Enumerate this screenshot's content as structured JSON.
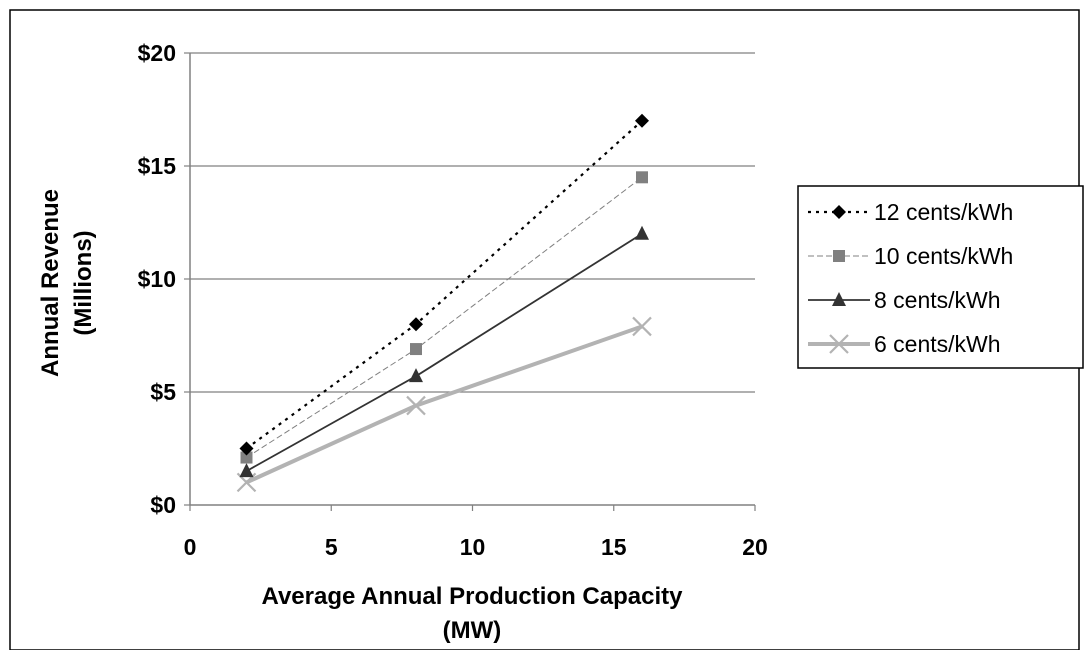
{
  "chart_data": {
    "type": "line",
    "title": "",
    "xlabel_lines": [
      "Average Annual Production Capacity",
      "(MW)"
    ],
    "ylabel_lines": [
      "Annual Revenue",
      "(Millions)"
    ],
    "xlim": [
      0,
      20
    ],
    "ylim": [
      0,
      20
    ],
    "x_ticks": [
      0,
      5,
      10,
      15,
      20
    ],
    "y_ticks": [
      0,
      5,
      10,
      15,
      20
    ],
    "x_tick_labels": [
      "0",
      "5",
      "10",
      "15",
      "20"
    ],
    "y_tick_labels": [
      "$0",
      "$5",
      "$10",
      "$15",
      "$20"
    ],
    "grid": "horizontal",
    "legend_position": "right",
    "x": [
      2,
      8,
      16
    ],
    "series": [
      {
        "name": "12 cents/kWh",
        "values": [
          2.5,
          8.0,
          17.0
        ],
        "color": "#000000",
        "style": "dotted",
        "marker": "diamond"
      },
      {
        "name": "10 cents/kWh",
        "values": [
          2.1,
          6.9,
          14.5
        ],
        "color": "#808080",
        "style": "thin-dashed",
        "marker": "square"
      },
      {
        "name": "8 cents/kWh",
        "values": [
          1.5,
          5.7,
          12.0
        ],
        "color": "#333333",
        "style": "solid",
        "marker": "triangle"
      },
      {
        "name": "6 cents/kWh",
        "values": [
          1.0,
          4.4,
          7.9
        ],
        "color": "#b3b3b3",
        "style": "thick",
        "marker": "x"
      }
    ]
  }
}
